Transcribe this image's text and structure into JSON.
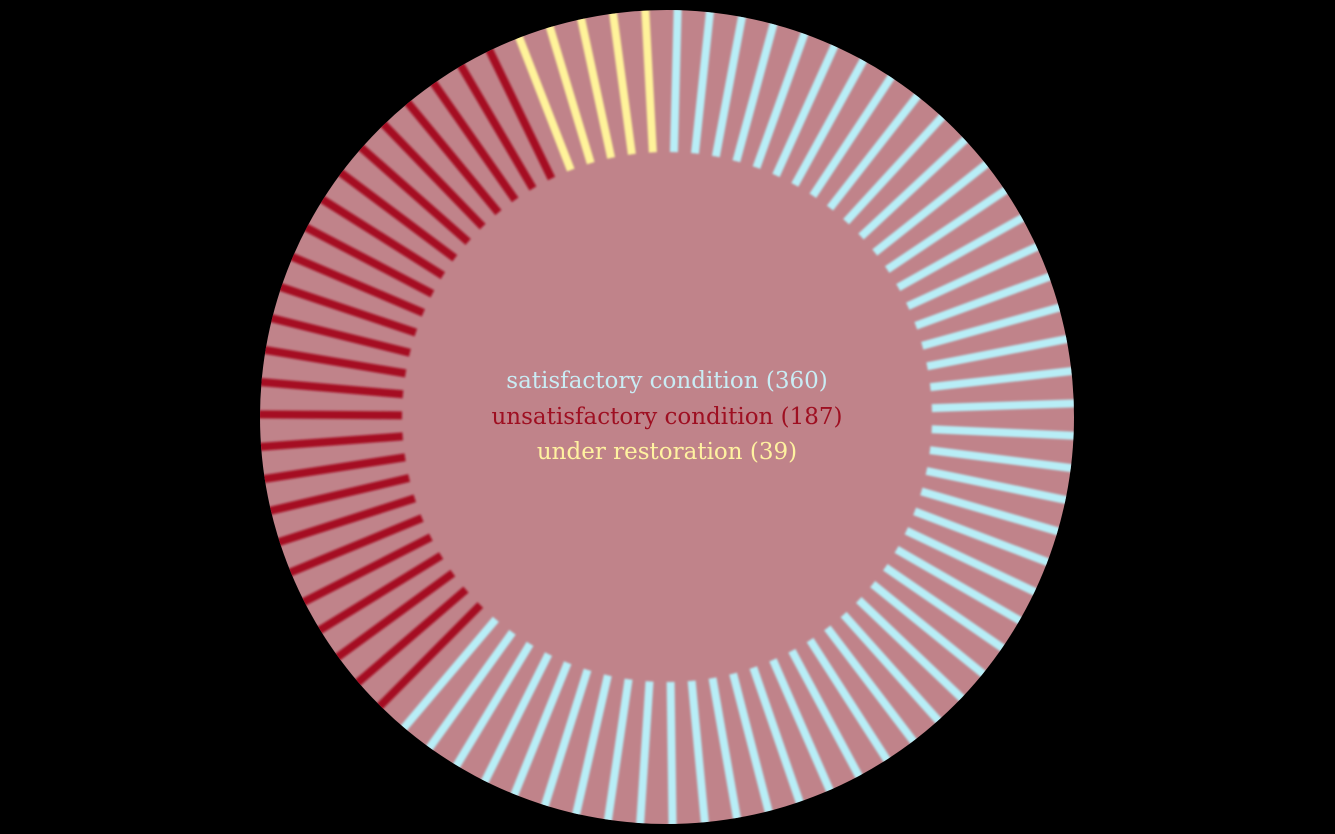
{
  "chart_data": {
    "type": "radial-bar",
    "background": "#000000",
    "disc_color": "#c0838a",
    "series": [
      {
        "name": "satisfactory condition",
        "count": 360,
        "color": "#b8eef7"
      },
      {
        "name": "unsatisfactory condition",
        "count": 187,
        "color": "#a50d22"
      },
      {
        "name": "under restoration",
        "count": 39,
        "color": "#fff39a"
      }
    ],
    "legend": [
      {
        "label": "satisfactory condition (360)",
        "color": "#c9ecf4"
      },
      {
        "label": "unsatisfactory condition (187)",
        "color": "#9e0f21"
      },
      {
        "label": "under restoration (39)",
        "color": "#fff2a0"
      }
    ]
  }
}
